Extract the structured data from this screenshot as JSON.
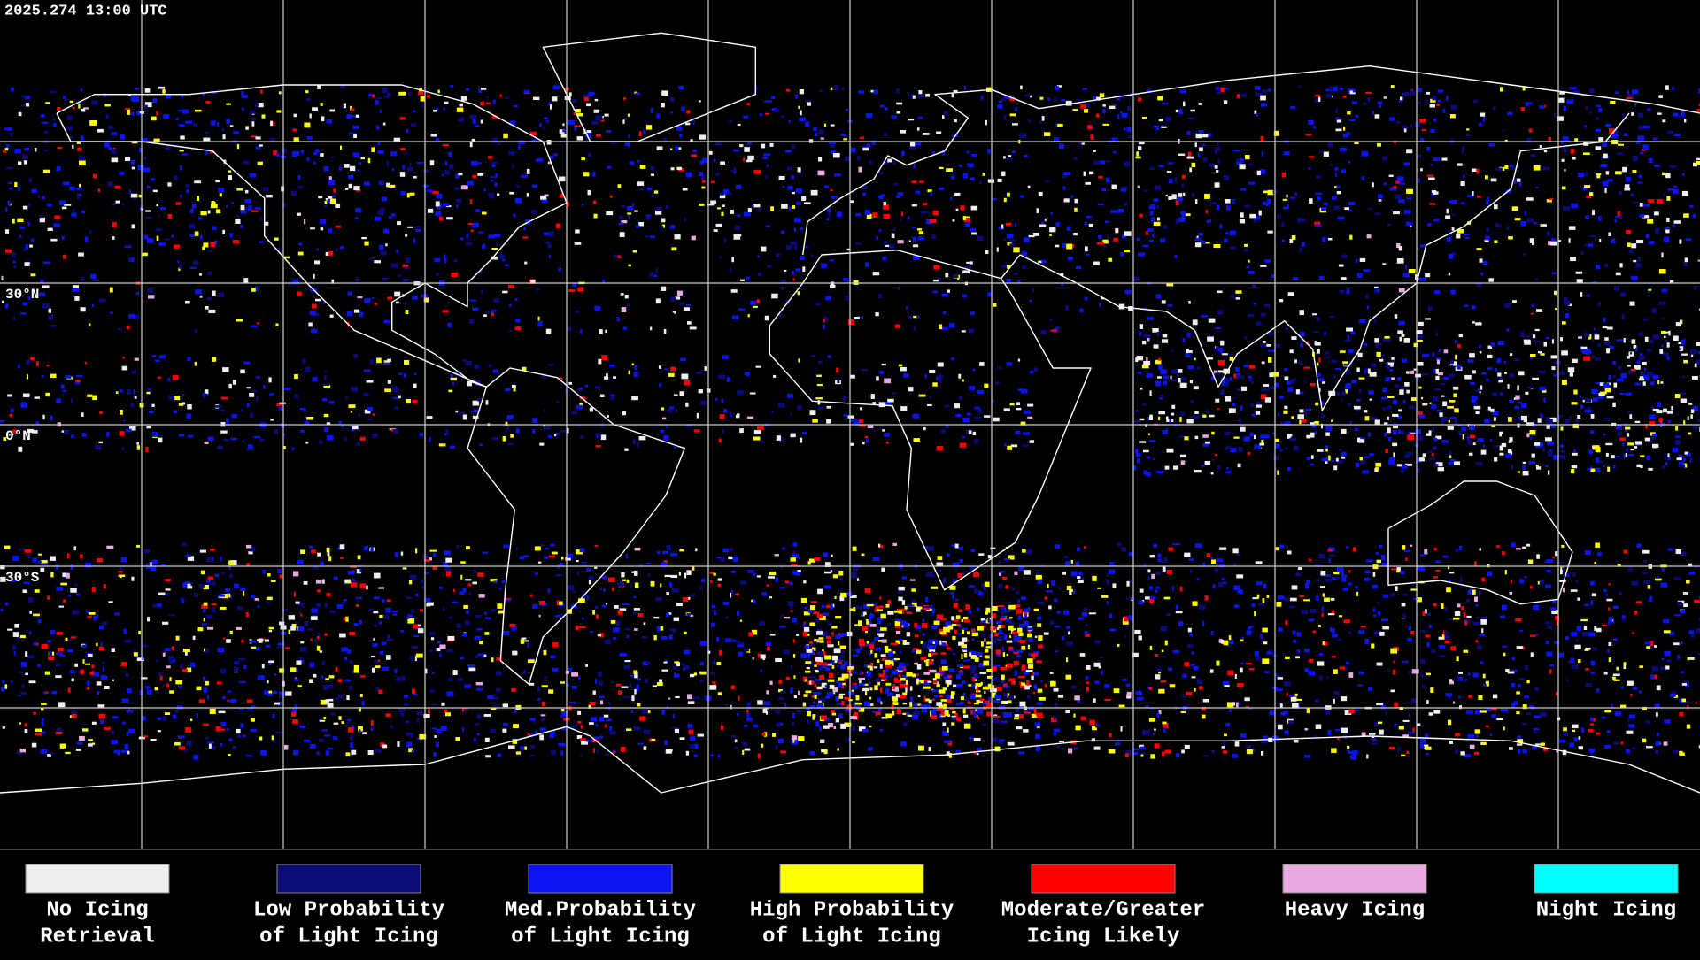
{
  "header": {
    "timestamp": "2025.274 13:00 UTC"
  },
  "map": {
    "latitude_labels": [
      "30°N",
      "0°N",
      "30°S"
    ]
  },
  "legend": [
    {
      "lines": [
        "No Icing",
        "Retrieval"
      ],
      "color": "#eeeeee"
    },
    {
      "lines": [
        "Low Probability",
        "of Light Icing"
      ],
      "color": "#0a0a78"
    },
    {
      "lines": [
        "Med.Probability",
        "of Light Icing"
      ],
      "color": "#0a14f0"
    },
    {
      "lines": [
        "High Probability",
        "of Light Icing"
      ],
      "color": "#ffff00"
    },
    {
      "lines": [
        "Moderate/Greater",
        "Icing Likely"
      ],
      "color": "#ff0000"
    },
    {
      "lines": [
        "Heavy Icing"
      ],
      "color": "#e8a8e0"
    },
    {
      "lines": [
        "Night Icing"
      ],
      "color": "#00ffff"
    }
  ]
}
